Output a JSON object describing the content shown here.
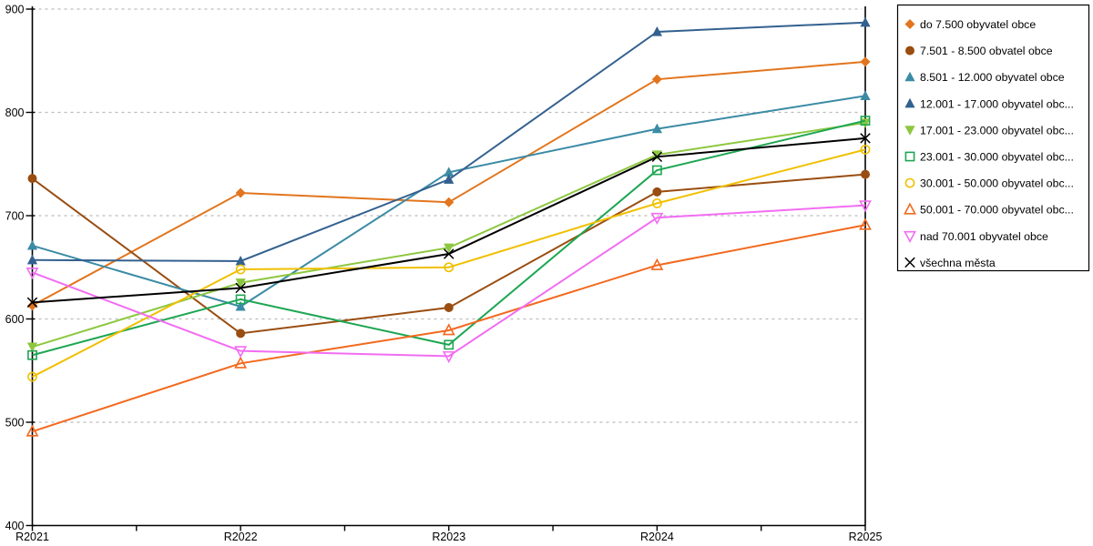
{
  "chart_data": {
    "type": "line",
    "title": "",
    "xlabel": "",
    "ylabel": "",
    "x_categories": [
      "R2021",
      "R2022",
      "R2023",
      "R2024",
      "R2025"
    ],
    "y_ticks": [
      400,
      500,
      600,
      700,
      800,
      900
    ],
    "ylim": [
      400,
      900
    ],
    "grid": "horizontal-dashed",
    "grid_color": "#bbbbbb",
    "axis_color": "#000000",
    "legend_position": "top-right",
    "legend_border_color": "#000000",
    "series": [
      {
        "label": "do 7.500 obyvatel obce",
        "marker": "diamond",
        "marker_fill": "filled",
        "color": "#E2751D",
        "values": [
          613,
          722,
          713,
          832,
          849
        ]
      },
      {
        "label": "7.501 - 8.500 obvatel obce",
        "marker": "circle",
        "marker_fill": "filled",
        "color": "#9A4D10",
        "values": [
          736,
          586,
          611,
          723,
          740
        ]
      },
      {
        "label": "8.501 - 12.000 obyvatel obce",
        "marker": "triangle-up",
        "marker_fill": "filled",
        "color": "#3B8BA5",
        "values": [
          671,
          612,
          742,
          784,
          816
        ]
      },
      {
        "label": "12.001 - 17.000 obyvatel obc...",
        "marker": "triangle-up",
        "marker_fill": "filled",
        "color": "#33618F",
        "values": [
          657,
          656,
          735,
          878,
          887
        ]
      },
      {
        "label": "17.001 - 23.000 obyvatel obc...",
        "marker": "triangle-down",
        "marker_fill": "filled",
        "color": "#8DC73F",
        "values": [
          573,
          635,
          669,
          759,
          790
        ]
      },
      {
        "label": "23.001 - 30.000 obyvatel obc...",
        "marker": "square",
        "marker_fill": "hollow",
        "color": "#1EA653",
        "values": [
          565,
          619,
          575,
          744,
          792
        ]
      },
      {
        "label": "30.001 - 50.000 obyvatel obc...",
        "marker": "circle",
        "marker_fill": "hollow",
        "color": "#F0C000",
        "values": [
          544,
          648,
          650,
          712,
          764
        ]
      },
      {
        "label": "50.001 - 70.000 obyvatel obc...",
        "marker": "triangle-up",
        "marker_fill": "hollow",
        "color": "#F2691E",
        "values": [
          491,
          557,
          589,
          652,
          691
        ]
      },
      {
        "label": "nad 70.001 obyvatel obce",
        "marker": "triangle-down",
        "marker_fill": "hollow",
        "color": "#F26DF2",
        "values": [
          645,
          569,
          564,
          698,
          710
        ]
      },
      {
        "label": "všechna města",
        "marker": "x",
        "marker_fill": "filled",
        "color": "#000000",
        "values": [
          616,
          630,
          663,
          757,
          775
        ]
      }
    ]
  }
}
